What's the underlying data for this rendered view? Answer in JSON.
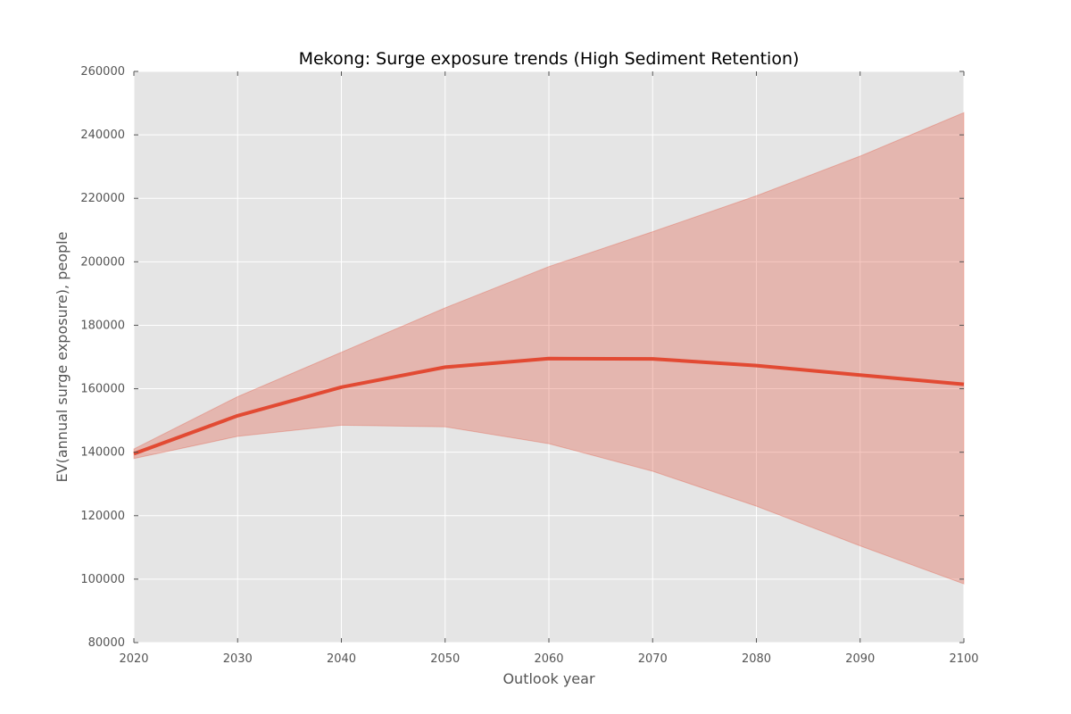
{
  "chart_data": {
    "type": "line",
    "title": "Mekong: Surge exposure trends (High Sediment Retention)",
    "xlabel": "Outlook year",
    "ylabel": "EV(annual surge exposure), people",
    "xlim": [
      2020,
      2100
    ],
    "ylim": [
      80000,
      260000
    ],
    "x_ticks": [
      2020,
      2030,
      2040,
      2050,
      2060,
      2070,
      2080,
      2090,
      2100
    ],
    "y_ticks": [
      80000,
      100000,
      120000,
      140000,
      160000,
      180000,
      200000,
      220000,
      240000,
      260000
    ],
    "x": [
      2020,
      2030,
      2040,
      2050,
      2060,
      2070,
      2080,
      2090,
      2100
    ],
    "series": [
      {
        "values": [
          139500,
          151500,
          160500,
          166800,
          169500,
          169400,
          167300,
          164300,
          161400
        ],
        "lower": [
          138000,
          145000,
          148500,
          148000,
          142700,
          134000,
          123000,
          110500,
          98500
        ],
        "upper": [
          141000,
          157500,
          171500,
          185500,
          198500,
          209500,
          220800,
          233300,
          247000
        ]
      }
    ],
    "grid": true,
    "colors": {
      "line": "#e24a33",
      "band": "#e24a33",
      "background": "#e5e5e5",
      "grid": "#ffffff"
    }
  }
}
